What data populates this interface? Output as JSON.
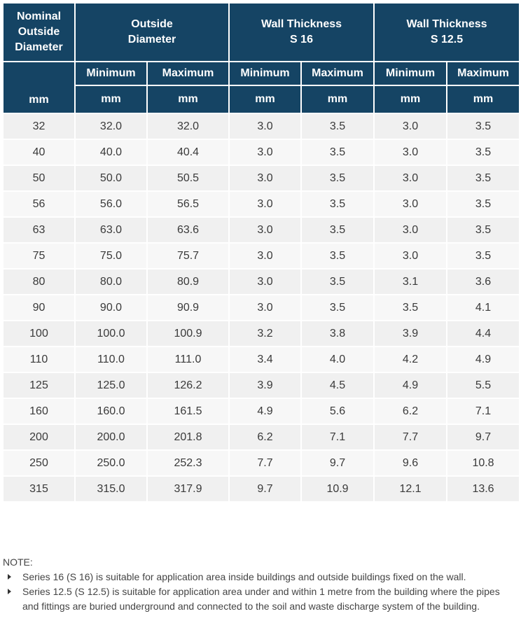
{
  "table": {
    "headers": {
      "nominal": [
        "Nominal",
        "Outside",
        "Diameter"
      ],
      "nominal_unit": "mm",
      "outside_diameter": [
        "Outside",
        "Diameter"
      ],
      "wall_s16": [
        "Wall Thickness",
        "S 16"
      ],
      "wall_s125": [
        "Wall Thickness",
        "S 12.5"
      ],
      "min_label": "Minimum",
      "max_label": "Maximum",
      "unit": "mm"
    },
    "rows": [
      [
        "32",
        "32.0",
        "32.0",
        "3.0",
        "3.5",
        "3.0",
        "3.5"
      ],
      [
        "40",
        "40.0",
        "40.4",
        "3.0",
        "3.5",
        "3.0",
        "3.5"
      ],
      [
        "50",
        "50.0",
        "50.5",
        "3.0",
        "3.5",
        "3.0",
        "3.5"
      ],
      [
        "56",
        "56.0",
        "56.5",
        "3.0",
        "3.5",
        "3.0",
        "3.5"
      ],
      [
        "63",
        "63.0",
        "63.6",
        "3.0",
        "3.5",
        "3.0",
        "3.5"
      ],
      [
        "75",
        "75.0",
        "75.7",
        "3.0",
        "3.5",
        "3.0",
        "3.5"
      ],
      [
        "80",
        "80.0",
        "80.9",
        "3.0",
        "3.5",
        "3.1",
        "3.6"
      ],
      [
        "90",
        "90.0",
        "90.9",
        "3.0",
        "3.5",
        "3.5",
        "4.1"
      ],
      [
        "100",
        "100.0",
        "100.9",
        "3.2",
        "3.8",
        "3.9",
        "4.4"
      ],
      [
        "110",
        "110.0",
        "111.0",
        "3.4",
        "4.0",
        "4.2",
        "4.9"
      ],
      [
        "125",
        "125.0",
        "126.2",
        "3.9",
        "4.5",
        "4.9",
        "5.5"
      ],
      [
        "160",
        "160.0",
        "161.5",
        "4.9",
        "5.6",
        "6.2",
        "7.1"
      ],
      [
        "200",
        "200.0",
        "201.8",
        "6.2",
        "7.1",
        "7.7",
        "9.7"
      ],
      [
        "250",
        "250.0",
        "252.3",
        "7.7",
        "9.7",
        "9.6",
        "10.8"
      ],
      [
        "315",
        "315.0",
        "317.9",
        "9.7",
        "10.9",
        "12.1",
        "13.6"
      ]
    ]
  },
  "notes": {
    "label": "NOTE:",
    "items": [
      "Series 16 (S 16) is suitable for application area inside buildings and outside buildings fixed on the wall.",
      "Series 12.5 (S 12.5) is suitable for application area under and within 1 metre from the building where the pipes and fittings are buried underground and connected to the soil and waste discharge system of the building."
    ]
  },
  "colors": {
    "header_bg": "#154464",
    "header_text": "#ffffff",
    "row_odd": "#f0f0f0",
    "row_even": "#f7f7f7"
  }
}
